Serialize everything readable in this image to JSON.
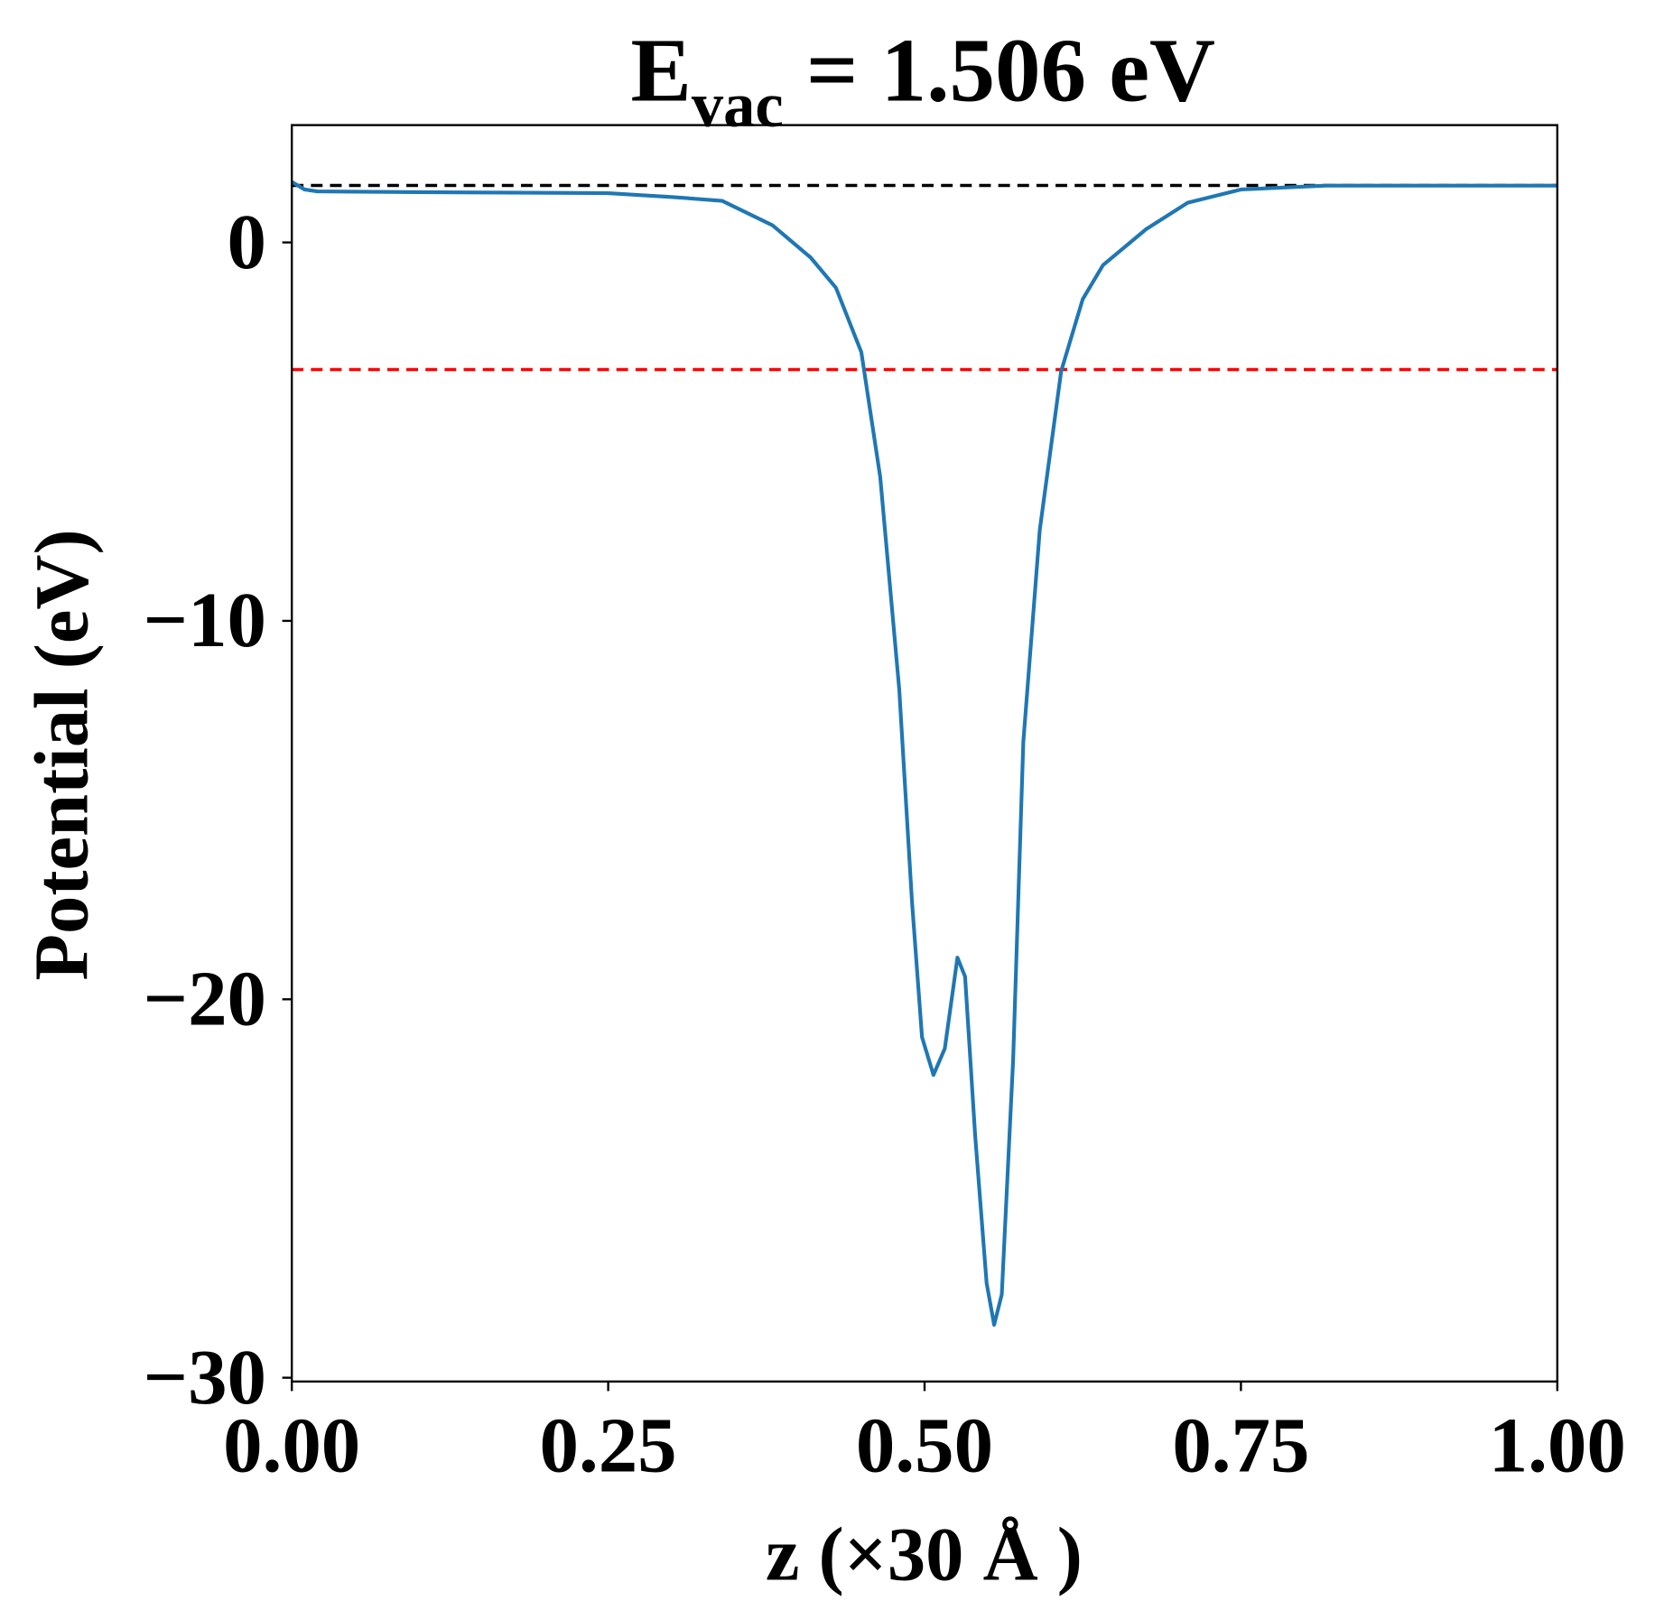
{
  "chart_data": {
    "type": "line",
    "title": {
      "main": "E",
      "subscript": "vac",
      "rest": " = 1.506 eV"
    },
    "xlabel": "z (×30 Å )",
    "ylabel": "Potential (eV)",
    "xlim": [
      0,
      1
    ],
    "ylim": [
      -30.1,
      3.1
    ],
    "xticks": [
      0,
      0.25,
      0.5,
      0.75,
      1.0
    ],
    "xtick_labels": [
      "0.00",
      "0.25",
      "0.50",
      "0.75",
      "1.00"
    ],
    "yticks": [
      0,
      -10,
      -20,
      -30
    ],
    "ytick_labels": [
      "0",
      "−10",
      "−20",
      "−30"
    ],
    "grid": false,
    "hlines": [
      {
        "name": "vacuum-level",
        "y": 1.506,
        "color": "#000000",
        "style": "dashed"
      },
      {
        "name": "fermi-level",
        "y": -3.36,
        "color": "#ff0000",
        "style": "dashed"
      }
    ],
    "series": [
      {
        "name": "planar-average-potential",
        "color": "#1f77b4",
        "x": [
          0,
          0.01,
          0.02,
          0.1,
          0.25,
          0.3,
          0.34,
          0.38,
          0.41,
          0.43,
          0.45,
          0.465,
          0.48,
          0.49,
          0.498,
          0.507,
          0.516,
          0.526,
          0.532,
          0.54,
          0.549,
          0.555,
          0.561,
          0.57,
          0.578,
          0.591,
          0.608,
          0.625,
          0.641,
          0.675,
          0.708,
          0.75,
          0.817,
          0.9,
          1.0
        ],
        "y": [
          1.6,
          1.4,
          1.35,
          1.33,
          1.3,
          1.2,
          1.1,
          0.45,
          -0.4,
          -1.2,
          -2.9,
          -6.2,
          -11.8,
          -17.4,
          -21.0,
          -22.0,
          -21.3,
          -18.9,
          -19.4,
          -23.6,
          -27.5,
          -28.6,
          -27.8,
          -21.6,
          -13.2,
          -7.6,
          -3.4,
          -1.5,
          -0.6,
          0.35,
          1.05,
          1.4,
          1.5,
          1.5,
          1.5
        ]
      }
    ]
  }
}
